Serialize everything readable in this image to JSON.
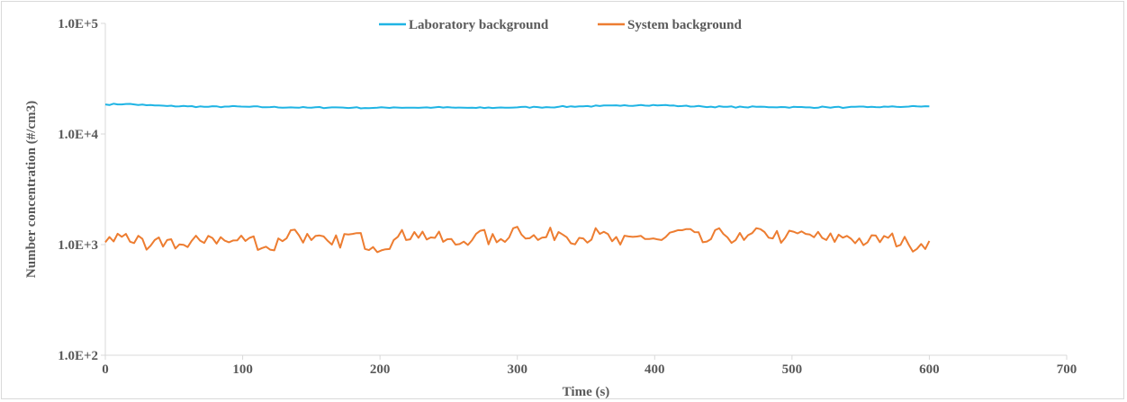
{
  "chart_data": {
    "type": "line",
    "title": "",
    "xlabel": "Time (s)",
    "ylabel": "Number concentration (#/cm3)",
    "xlim": [
      0,
      700
    ],
    "ylim": [
      100,
      100000
    ],
    "yscale": "log",
    "x_ticks": [
      "0",
      "100",
      "200",
      "300",
      "400",
      "500",
      "600",
      "700"
    ],
    "y_ticks": [
      "1.0E+2",
      "1.0E+3",
      "1.0E+4",
      "1.0E+5"
    ],
    "legend_position": "top-center",
    "grid": false,
    "x": [
      0,
      15,
      30,
      45,
      60,
      75,
      90,
      105,
      120,
      135,
      150,
      165,
      180,
      195,
      210,
      225,
      240,
      255,
      270,
      285,
      300,
      315,
      330,
      345,
      360,
      375,
      390,
      405,
      420,
      435,
      450,
      465,
      480,
      495,
      510,
      525,
      540,
      555,
      570,
      585,
      600
    ],
    "series": [
      {
        "name": "Laboratory background",
        "color": "#1fb4e4",
        "values": [
          18500,
          18700,
          18200,
          17900,
          17800,
          17600,
          17700,
          17600,
          17500,
          17400,
          17300,
          17400,
          17300,
          17200,
          17400,
          17300,
          17400,
          17300,
          17200,
          17300,
          17400,
          17500,
          17600,
          17800,
          17900,
          18000,
          18300,
          18200,
          17900,
          17700,
          17600,
          17500,
          17600,
          17500,
          17400,
          17500,
          17400,
          17500,
          17600,
          17700,
          17800
        ]
      },
      {
        "name": "System background",
        "color": "#ed7d31",
        "values": [
          1050,
          1250,
          900,
          1100,
          950,
          1200,
          1050,
          1150,
          900,
          1350,
          1100,
          1000,
          1250,
          950,
          1100,
          1300,
          1150,
          1000,
          1250,
          1050,
          1450,
          1100,
          1300,
          1150,
          1250,
          1000,
          1200,
          1100,
          1350,
          1050,
          1250,
          1100,
          1300,
          1150,
          1250,
          1100,
          1200,
          1050,
          1150,
          1000,
          1080
        ]
      }
    ]
  }
}
